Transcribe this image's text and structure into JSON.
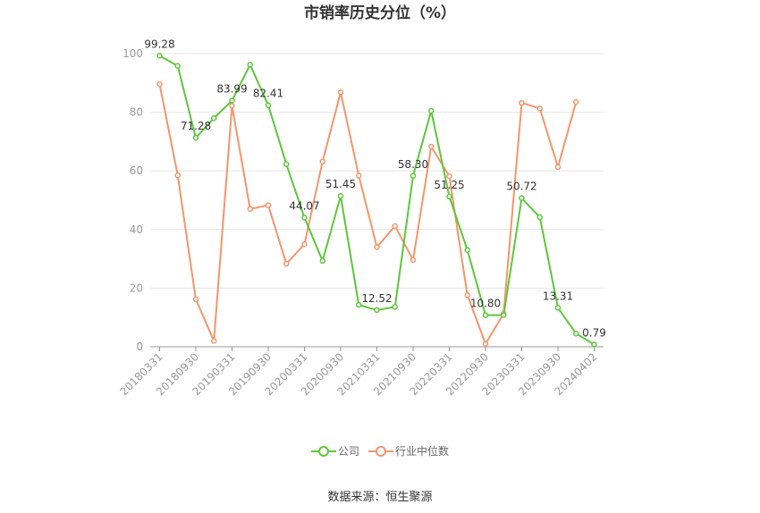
{
  "chart_data": {
    "type": "line",
    "title": "市销率历史分位（%）",
    "xlabel": "",
    "ylabel": "",
    "ylim": [
      0,
      100
    ],
    "yticks": [
      0,
      20,
      40,
      60,
      80,
      100
    ],
    "grid": true,
    "legend_position": "bottom",
    "tick_labels": [
      "20180331",
      "20180930",
      "20190331",
      "20190930",
      "20200331",
      "20200930",
      "20210331",
      "20210930",
      "20220331",
      "20220930",
      "20230331",
      "20230930",
      "20240402"
    ],
    "series": [
      {
        "name": "公司",
        "color": "#5cc73a",
        "values": [
          99.28,
          95.8,
          71.28,
          78.0,
          83.99,
          96.2,
          82.41,
          62.3,
          44.07,
          29.3,
          51.45,
          14.3,
          12.52,
          13.6,
          58.3,
          80.5,
          51.25,
          33.0,
          10.8,
          10.8,
          50.72,
          44.2,
          13.31,
          4.5,
          0.79
        ],
        "labels": {
          "0": "99.28",
          "2": "71.28",
          "4": "83.99",
          "6": "82.41",
          "8": "44.07",
          "10": "51.45",
          "12": "12.52",
          "14": "58.30",
          "16": "51.25",
          "18": "10.80",
          "20": "50.72",
          "22": "13.31",
          "24": "0.79"
        }
      },
      {
        "name": "行业中位数",
        "color": "#f4956b",
        "values": [
          89.6,
          58.5,
          16.2,
          2.0,
          82.2,
          47.0,
          48.3,
          28.3,
          35.0,
          63.2,
          86.8,
          58.4,
          34.0,
          41.2,
          29.6,
          68.3,
          58.2,
          17.6,
          1.0,
          11.3,
          83.2,
          81.3,
          61.3,
          83.5
        ]
      }
    ]
  },
  "source": "数据来源：恒生聚源"
}
